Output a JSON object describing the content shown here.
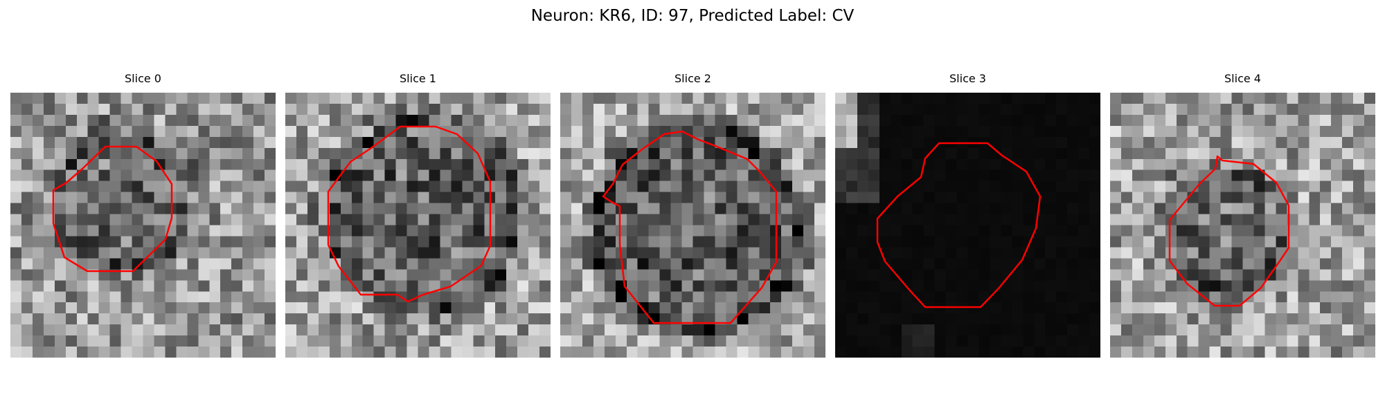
{
  "figure": {
    "title": "Neuron: KR6, ID: 97, Predicted Label: CV",
    "contour_color": "#ff0000",
    "colormap": "gray"
  },
  "slices": [
    {
      "title": "Slice 0",
      "brightness": "medium-light"
    },
    {
      "title": "Slice 1",
      "brightness": "medium-light"
    },
    {
      "title": "Slice 2",
      "brightness": "medium-light"
    },
    {
      "title": "Slice 3",
      "brightness": "very-dark"
    },
    {
      "title": "Slice 4",
      "brightness": "medium-light"
    }
  ]
}
